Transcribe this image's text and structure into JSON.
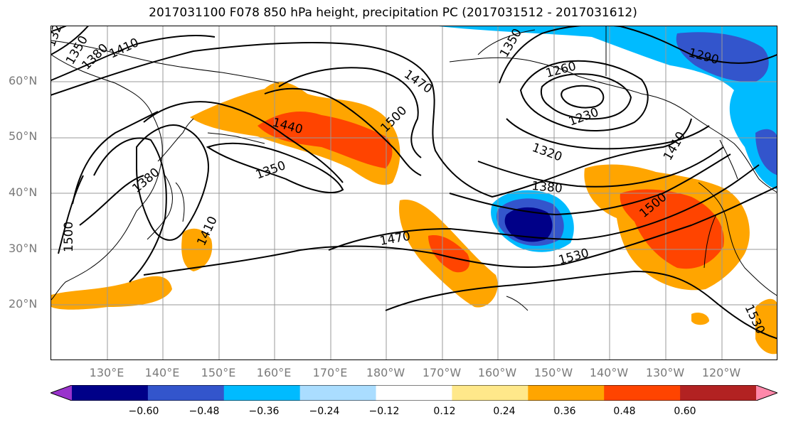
{
  "title": "2017031100 F078 850 hPa height, precipitation PC (2017031512 - 2017031612)",
  "map": {
    "lat_labels": [
      "60°N",
      "50°N",
      "40°N",
      "30°N",
      "20°N"
    ],
    "lon_labels": [
      "130°E",
      "140°E",
      "150°E",
      "160°E",
      "170°E",
      "180°W",
      "170°W",
      "160°W",
      "150°W",
      "140°W",
      "130°W",
      "120°W"
    ],
    "contour_labels": [
      "1320",
      "1350",
      "1380",
      "1410",
      "1470",
      "1500",
      "1440",
      "1350",
      "1380",
      "1410",
      "1500",
      "1350",
      "1260",
      "1290",
      "1230",
      "1320",
      "1380",
      "1470",
      "1530",
      "1500",
      "1410",
      "1530"
    ]
  },
  "colorbar": {
    "colors": [
      "#9933cc",
      "#000088",
      "#3355cc",
      "#00bbff",
      "#aaddff",
      "#ffffff",
      "#ffe88a",
      "#ffa500",
      "#ff4400",
      "#b22222",
      "#ff88aa"
    ],
    "tick_labels": [
      "−0.60",
      "−0.48",
      "−0.36",
      "−0.24",
      "−0.12",
      "0.12",
      "0.24",
      "0.36",
      "0.48",
      "0.60"
    ]
  },
  "chart_data": {
    "type": "heatmap",
    "title": "2017031100 F078 850 hPa height, precipitation PC (2017031512 - 2017031612)",
    "levels": [
      -0.6,
      -0.48,
      -0.36,
      -0.24,
      -0.12,
      0.12,
      0.24,
      0.36,
      0.48,
      0.6
    ],
    "contour_levels": [
      1230,
      1260,
      1290,
      1320,
      1350,
      1380,
      1410,
      1440,
      1470,
      1500,
      1530
    ],
    "legend": "bottom"
  }
}
